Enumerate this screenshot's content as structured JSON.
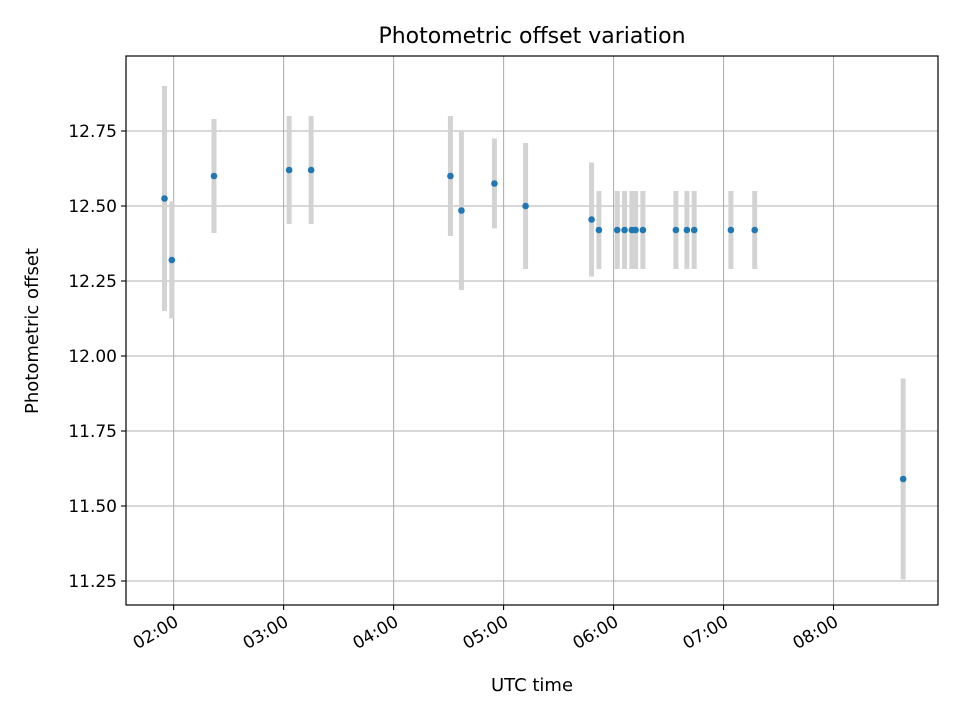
{
  "chart_data": {
    "type": "scatter",
    "title": "Photometric offset variation",
    "xlabel": "UTC time",
    "ylabel": "Photometric offset",
    "x_unit": "UTC time (HH:MM)",
    "xlim": [
      "01:34",
      "08:57"
    ],
    "ylim": [
      11.17,
      13.0
    ],
    "x_ticks": [
      "02:00",
      "03:00",
      "04:00",
      "05:00",
      "06:00",
      "07:00",
      "08:00"
    ],
    "y_ticks": [
      11.25,
      11.5,
      11.75,
      12.0,
      12.25,
      12.5,
      12.75
    ],
    "y_tick_labels": [
      "11.25",
      "11.50",
      "11.75",
      "12.00",
      "12.25",
      "12.50",
      "12.75"
    ],
    "grid": true,
    "marker_color": "#1f77b4",
    "errorbar_color": "#d3d3d3",
    "points": [
      {
        "x": "01:55",
        "y": 12.525,
        "yerr": 0.375
      },
      {
        "x": "01:59",
        "y": 12.32,
        "yerr": 0.195
      },
      {
        "x": "02:22",
        "y": 12.6,
        "yerr": 0.19
      },
      {
        "x": "03:03",
        "y": 12.62,
        "yerr": 0.18
      },
      {
        "x": "03:15",
        "y": 12.62,
        "yerr": 0.18
      },
      {
        "x": "04:31",
        "y": 12.6,
        "yerr": 0.2
      },
      {
        "x": "04:37",
        "y": 12.485,
        "yerr": 0.265
      },
      {
        "x": "04:55",
        "y": 12.575,
        "yerr": 0.15
      },
      {
        "x": "05:12",
        "y": 12.5,
        "yerr": 0.21
      },
      {
        "x": "05:48",
        "y": 12.455,
        "yerr": 0.19
      },
      {
        "x": "05:52",
        "y": 12.42,
        "yerr": 0.13
      },
      {
        "x": "06:02",
        "y": 12.42,
        "yerr": 0.13
      },
      {
        "x": "06:06",
        "y": 12.42,
        "yerr": 0.13
      },
      {
        "x": "06:10",
        "y": 12.42,
        "yerr": 0.13
      },
      {
        "x": "06:12",
        "y": 12.42,
        "yerr": 0.13
      },
      {
        "x": "06:16",
        "y": 12.42,
        "yerr": 0.13
      },
      {
        "x": "06:34",
        "y": 12.42,
        "yerr": 0.13
      },
      {
        "x": "06:40",
        "y": 12.42,
        "yerr": 0.13
      },
      {
        "x": "06:44",
        "y": 12.42,
        "yerr": 0.13
      },
      {
        "x": "07:04",
        "y": 12.42,
        "yerr": 0.13
      },
      {
        "x": "07:17",
        "y": 12.42,
        "yerr": 0.13
      },
      {
        "x": "08:38",
        "y": 11.59,
        "yerr": 0.335
      }
    ]
  }
}
